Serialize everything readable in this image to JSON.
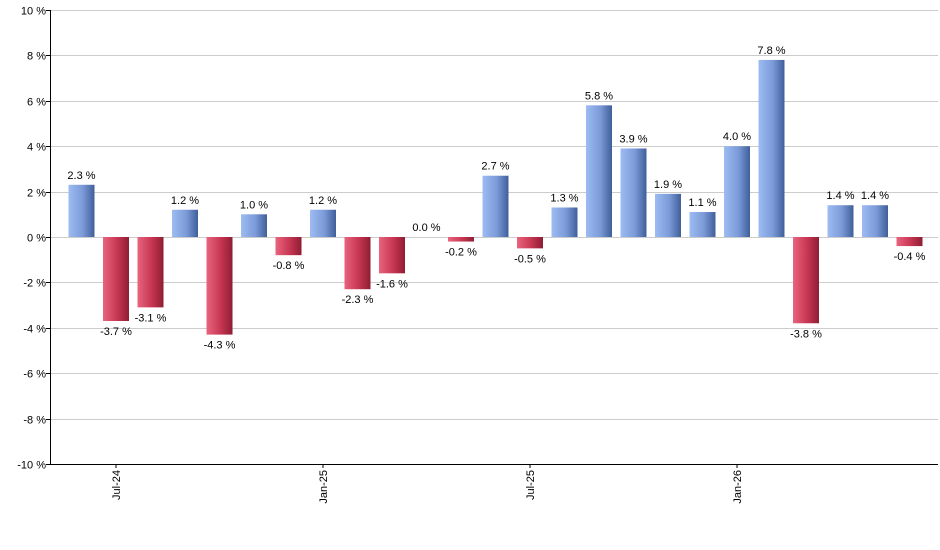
{
  "chart_data": {
    "type": "bar",
    "title": "",
    "xlabel": "",
    "ylabel": "",
    "ylim": [
      -10,
      10
    ],
    "y_ticks": [
      10,
      8,
      6,
      4,
      2,
      0,
      -2,
      -4,
      -6,
      -8,
      -10
    ],
    "y_tick_suffix": " %",
    "grid": true,
    "x_tick_labels": [
      {
        "label": "Jul-24",
        "index": 1
      },
      {
        "label": "Jan-25",
        "index": 7
      },
      {
        "label": "Jul-25",
        "index": 13
      },
      {
        "label": "Jan-26",
        "index": 19
      }
    ],
    "values": [
      2.3,
      -3.7,
      -3.1,
      1.2,
      -4.3,
      1.0,
      -0.8,
      1.2,
      -2.3,
      -1.6,
      0.0,
      -0.2,
      2.7,
      -0.5,
      1.3,
      5.8,
      3.9,
      1.9,
      1.1,
      4.0,
      7.8,
      -3.8,
      1.4,
      1.4,
      -0.4
    ],
    "data_labels": [
      "2.3 %",
      "-3.7 %",
      "-3.1 %",
      "1.2 %",
      "-4.3 %",
      "1.0 %",
      "-0.8 %",
      "1.2 %",
      "-2.3 %",
      "-1.6 %",
      "0.0 %",
      "-0.2 %",
      "2.7 %",
      "-0.5 %",
      "1.3 %",
      "5.8 %",
      "3.9 %",
      "1.9 %",
      "1.1 %",
      "4.0 %",
      "7.8 %",
      "-3.8 %",
      "1.4 %",
      "1.4 %",
      "-0.4 %"
    ],
    "colors": {
      "positive": "#8fb0ea",
      "positive_dark": "#3f5f9a",
      "negative": "#e0526e",
      "negative_dark": "#8e1d33",
      "grid": "#cccccc",
      "axis": "#000000"
    }
  }
}
